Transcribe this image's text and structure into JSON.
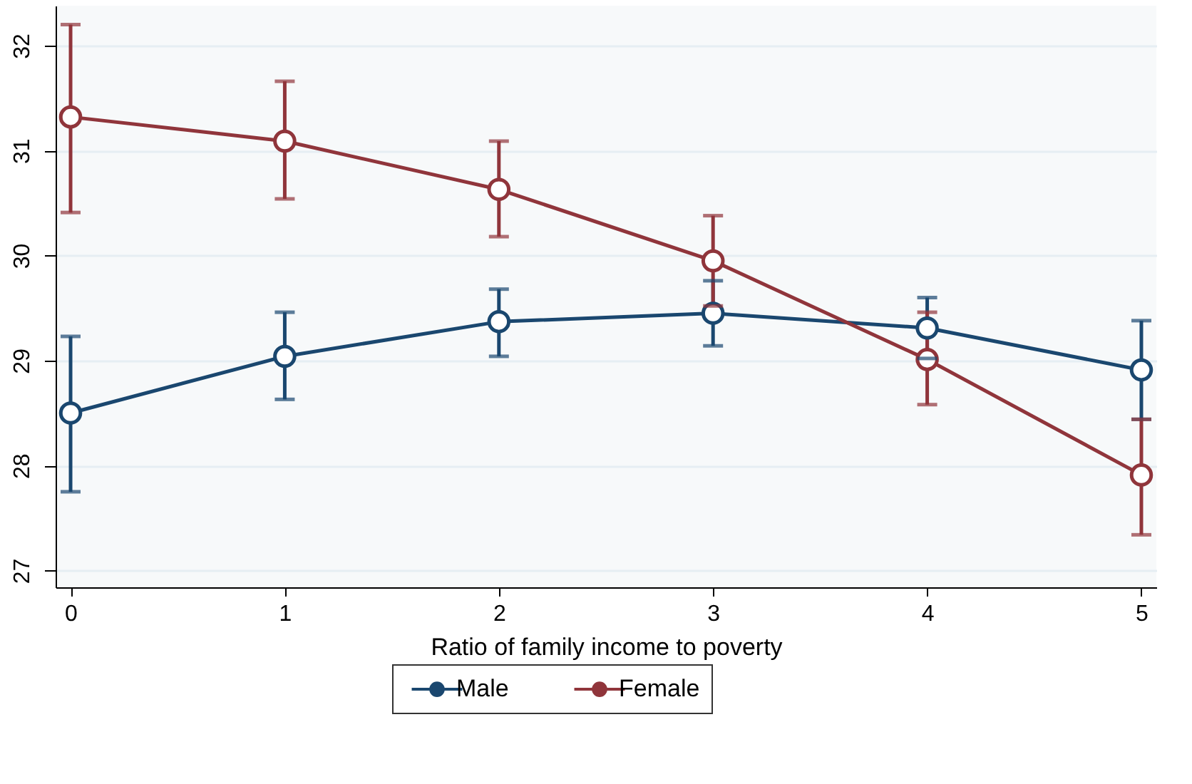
{
  "chart_data": {
    "type": "line",
    "xlabel": "Ratio of family income to poverty",
    "x": [
      0,
      1,
      2,
      3,
      4,
      5
    ],
    "xlim": [
      -0.07,
      5.07
    ],
    "xticks": [
      {
        "value": 0,
        "label": "0"
      },
      {
        "value": 1,
        "label": "1"
      },
      {
        "value": 2,
        "label": "2"
      },
      {
        "value": 3,
        "label": "3"
      },
      {
        "value": 4,
        "label": "4"
      },
      {
        "value": 5,
        "label": "5"
      }
    ],
    "ylim": [
      26.84,
      32.38
    ],
    "yticks": [
      {
        "value": 27,
        "label": "27"
      },
      {
        "value": 28,
        "label": "28"
      },
      {
        "value": 29,
        "label": "29"
      },
      {
        "value": 30,
        "label": "30"
      },
      {
        "value": 31,
        "label": "31"
      },
      {
        "value": 32,
        "label": "32"
      }
    ],
    "grid": "y",
    "legend": "bottom",
    "marker": "circle",
    "series": [
      {
        "name": "Male",
        "color": "#1a476f",
        "values": [
          28.5,
          29.04,
          29.37,
          29.45,
          29.31,
          28.91
        ],
        "errors": [
          [
            27.75,
            29.23
          ],
          [
            28.63,
            29.46
          ],
          [
            29.04,
            29.68
          ],
          [
            29.14,
            29.76
          ],
          [
            29.02,
            29.6
          ],
          [
            28.44,
            29.38
          ]
        ]
      },
      {
        "name": "Female",
        "color": "#90353b",
        "values": [
          31.32,
          31.09,
          30.63,
          29.95,
          29.01,
          27.91
        ],
        "errors": [
          [
            30.41,
            32.2
          ],
          [
            30.54,
            31.66
          ],
          [
            30.18,
            31.09
          ],
          [
            29.52,
            30.38
          ],
          [
            28.58,
            29.46
          ],
          [
            27.34,
            28.44
          ]
        ]
      }
    ]
  }
}
